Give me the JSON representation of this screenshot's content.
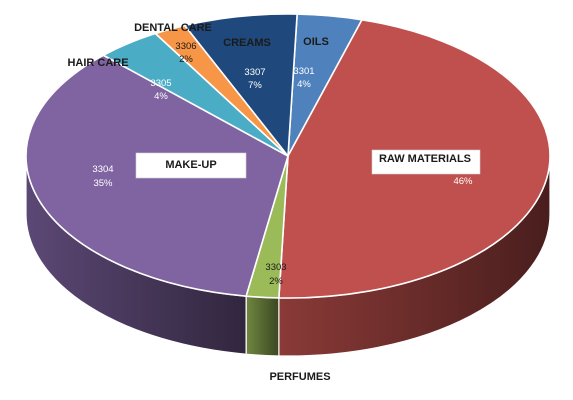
{
  "chart_data": {
    "type": "pie",
    "slices": [
      {
        "code": "3301",
        "category": "OILS",
        "percent": "4%",
        "value": 4,
        "color": "#4f81bd"
      },
      {
        "code": "",
        "category": "RAW MATERIALS",
        "percent": "46%",
        "value": 46,
        "color": "#c0504d"
      },
      {
        "code": "3303",
        "category": "PERFUMES",
        "percent": "2%",
        "value": 2,
        "color": "#9bbb59"
      },
      {
        "code": "3304",
        "category": "MAKE-UP",
        "percent": "35%",
        "value": 35,
        "color": "#8064a2"
      },
      {
        "code": "3305",
        "category": "HAIR CARE",
        "percent": "4%",
        "value": 4,
        "color": "#4bacc6"
      },
      {
        "code": "3306",
        "category": "DENTAL CARE",
        "percent": "2%",
        "value": 2,
        "color": "#f79646"
      },
      {
        "code": "3307",
        "category": "CREAMS",
        "percent": "7%",
        "value": 7,
        "color": "#1f497d"
      }
    ]
  }
}
